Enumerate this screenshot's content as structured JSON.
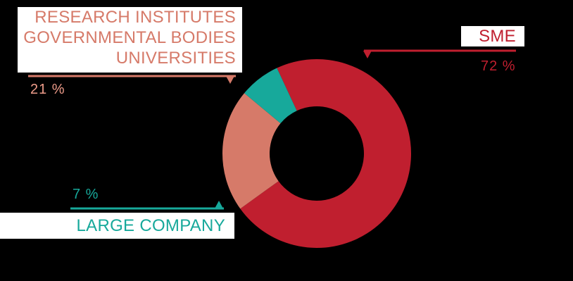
{
  "chart_data": {
    "type": "pie",
    "donut": true,
    "categories": [
      "SME",
      "RESEARCH INSTITUTES\nGOVERNMENTAL BODIES\nUNIVERSITIES",
      "LARGE COMPANY"
    ],
    "values": [
      72,
      21,
      7
    ],
    "value_labels": [
      "72 %",
      "21 %",
      "7 %"
    ],
    "colors": [
      "#c01f2f",
      "#d67a69",
      "#17a99b"
    ]
  }
}
